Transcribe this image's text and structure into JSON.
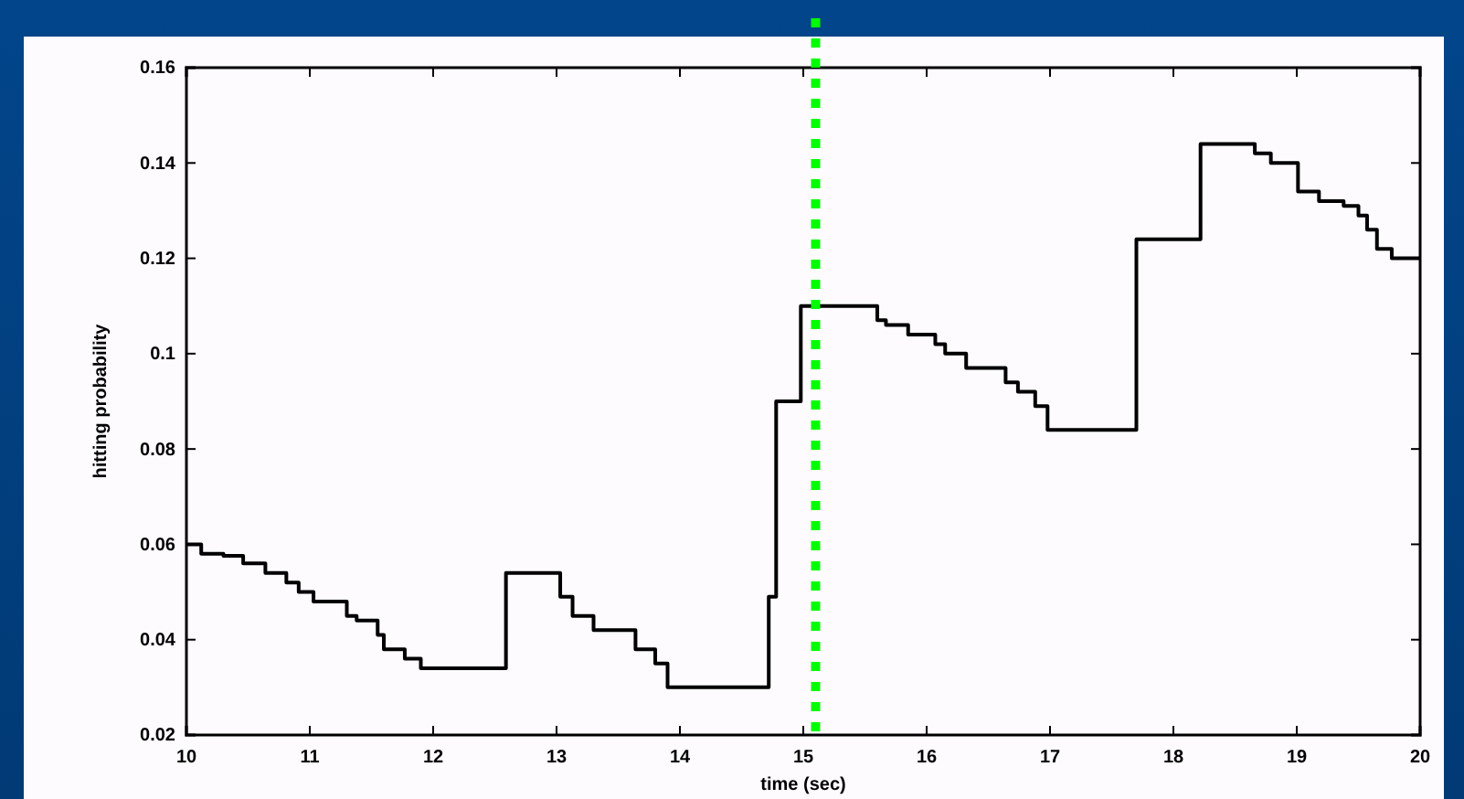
{
  "chart_data": {
    "type": "step",
    "xlabel": "time (sec)",
    "ylabel": "hitting probability",
    "xlim": [
      10,
      20
    ],
    "xticks": [
      10,
      11,
      12,
      13,
      14,
      15,
      16,
      17,
      18,
      19,
      20
    ],
    "ylim": [
      0.02,
      0.16
    ],
    "yticks": [
      0.02,
      0.04,
      0.06,
      0.08,
      0.1,
      0.12,
      0.14,
      0.16
    ],
    "grid": false,
    "marker": "none",
    "line_style": "solid",
    "series": [
      {
        "color": "#000000",
        "x": [
          10,
          10.12,
          10.3,
          10.46,
          10.64,
          10.81,
          10.91,
          11.03,
          11.3,
          11.38,
          11.55,
          11.6,
          11.77,
          11.9,
          12.59,
          13.03,
          13.13,
          13.3,
          13.64,
          13.8,
          13.9,
          14.72,
          14.78,
          14.98,
          15.6,
          15.67,
          15.85,
          16.07,
          16.15,
          16.32,
          16.64,
          16.74,
          16.88,
          16.98,
          17.7,
          18.22,
          18.66,
          18.79,
          19.01,
          19.18,
          19.38,
          19.5,
          19.57,
          19.65,
          19.77,
          20
        ],
        "values": [
          0.06,
          0.058,
          0.0576,
          0.056,
          0.054,
          0.052,
          0.05,
          0.048,
          0.045,
          0.044,
          0.041,
          0.038,
          0.036,
          0.034,
          0.054,
          0.049,
          0.045,
          0.042,
          0.038,
          0.035,
          0.03,
          0.049,
          0.09,
          0.11,
          0.107,
          0.106,
          0.104,
          0.102,
          0.1,
          0.097,
          0.094,
          0.092,
          0.089,
          0.084,
          0.124,
          0.144,
          0.142,
          0.14,
          0.134,
          0.132,
          0.131,
          0.129,
          0.126,
          0.122,
          0.12,
          0.12
        ]
      }
    ],
    "ref_lines": [
      {
        "axis": "x",
        "value": 15.1,
        "color": "#00ff00",
        "line_style": "dotted"
      }
    ]
  }
}
